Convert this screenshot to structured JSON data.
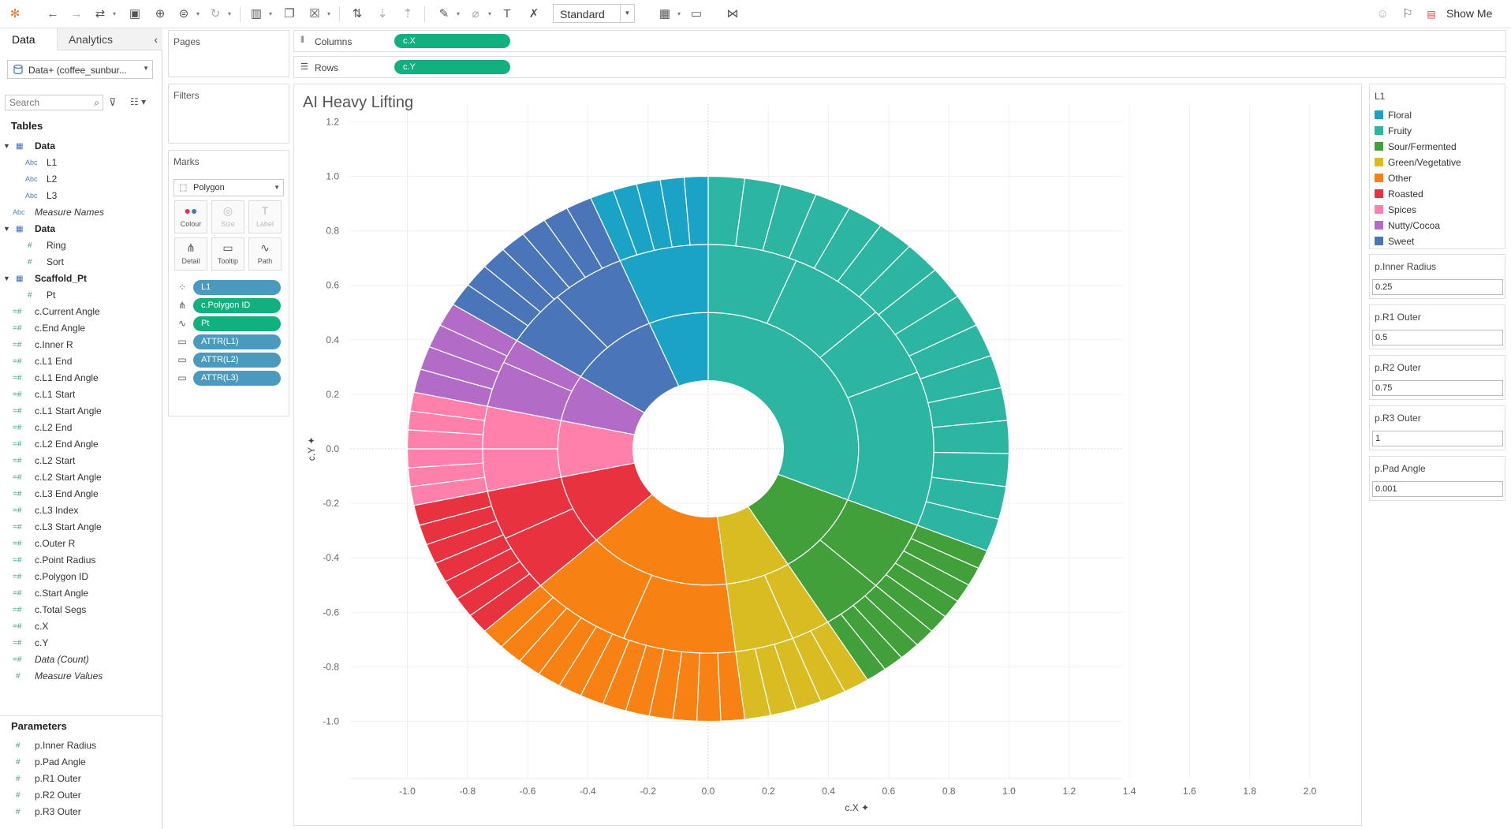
{
  "toolbar": {
    "view_select": "Standard",
    "show_me": "Show Me"
  },
  "left_pane": {
    "tab_data": "Data",
    "tab_analytics": "Analytics",
    "datasource": "Data+ (coffee_sunbur...",
    "search_placeholder": "Search",
    "tables_heading": "Tables",
    "fields": [
      {
        "label": "Data",
        "type": "table",
        "level": 0,
        "expanded": true
      },
      {
        "label": "L1",
        "type": "abc",
        "level": 1
      },
      {
        "label": "L2",
        "type": "abc",
        "level": 1
      },
      {
        "label": "L3",
        "type": "abc",
        "level": 1
      },
      {
        "label": "Measure Names",
        "type": "abc",
        "level": 0,
        "italic": true
      },
      {
        "label": "Data",
        "type": "table",
        "level": 0,
        "expanded": true
      },
      {
        "label": "Ring",
        "type": "num",
        "level": 1
      },
      {
        "label": "Sort",
        "type": "num",
        "level": 1
      },
      {
        "label": "Scaffold_Pt",
        "type": "table",
        "level": 0,
        "expanded": true
      },
      {
        "label": "Pt",
        "type": "num",
        "level": 1
      },
      {
        "label": "c.Current Angle",
        "type": "calc",
        "level": 0
      },
      {
        "label": "c.End Angle",
        "type": "calc",
        "level": 0
      },
      {
        "label": "c.Inner R",
        "type": "calc",
        "level": 0
      },
      {
        "label": "c.L1 End",
        "type": "calc",
        "level": 0
      },
      {
        "label": "c.L1 End Angle",
        "type": "calc",
        "level": 0
      },
      {
        "label": "c.L1 Start",
        "type": "calc",
        "level": 0
      },
      {
        "label": "c.L1 Start Angle",
        "type": "calc",
        "level": 0
      },
      {
        "label": "c.L2 End",
        "type": "calc",
        "level": 0
      },
      {
        "label": "c.L2 End Angle",
        "type": "calc",
        "level": 0
      },
      {
        "label": "c.L2 Start",
        "type": "calc",
        "level": 0
      },
      {
        "label": "c.L2 Start Angle",
        "type": "calc",
        "level": 0
      },
      {
        "label": "c.L3 End Angle",
        "type": "calc",
        "level": 0
      },
      {
        "label": "c.L3 Index",
        "type": "calc",
        "level": 0
      },
      {
        "label": "c.L3 Start Angle",
        "type": "calc",
        "level": 0
      },
      {
        "label": "c.Outer R",
        "type": "calc",
        "level": 0
      },
      {
        "label": "c.Point Radius",
        "type": "calc",
        "level": 0
      },
      {
        "label": "c.Polygon ID",
        "type": "calc",
        "level": 0
      },
      {
        "label": "c.Start Angle",
        "type": "calc",
        "level": 0
      },
      {
        "label": "c.Total Segs",
        "type": "calc",
        "level": 0
      },
      {
        "label": "c.X",
        "type": "calc",
        "level": 0
      },
      {
        "label": "c.Y",
        "type": "calc",
        "level": 0
      },
      {
        "label": "Data (Count)",
        "type": "calc",
        "level": 0,
        "italic": true
      },
      {
        "label": "Measure Values",
        "type": "num",
        "level": 0,
        "italic": true
      }
    ],
    "parameters_heading": "Parameters",
    "parameters": [
      "p.Inner Radius",
      "p.Pad Angle",
      "p.R1 Outer",
      "p.R2 Outer",
      "p.R3 Outer"
    ]
  },
  "pages": {
    "title": "Pages"
  },
  "filters": {
    "title": "Filters"
  },
  "marks": {
    "title": "Marks",
    "type": "Polygon",
    "buttons": [
      "Colour",
      "Size",
      "Label",
      "Detail",
      "Tooltip",
      "Path"
    ],
    "pills": [
      {
        "label": "L1",
        "icon": "colour-icon",
        "color": "blue"
      },
      {
        "label": "c.Polygon ID",
        "icon": "detail-icon",
        "color": "green"
      },
      {
        "label": "Pt",
        "icon": "path-icon",
        "color": "green"
      },
      {
        "label": "ATTR(L1)",
        "icon": "tooltip-icon",
        "color": "blue"
      },
      {
        "label": "ATTR(L2)",
        "icon": "tooltip-icon",
        "color": "blue"
      },
      {
        "label": "ATTR(L3)",
        "icon": "tooltip-icon",
        "color": "blue"
      }
    ]
  },
  "columns": {
    "label": "Columns",
    "pill": "c.X"
  },
  "rows": {
    "label": "Rows",
    "pill": "c.Y"
  },
  "viz": {
    "title": "AI Heavy Lifting"
  },
  "legend": {
    "title": "L1",
    "items": [
      {
        "label": "Floral",
        "color": "#1ba3c6"
      },
      {
        "label": "Fruity",
        "color": "#2cb5a0"
      },
      {
        "label": "Sour/Fermented",
        "color": "#41a03a"
      },
      {
        "label": "Green/Vegetative",
        "color": "#d9bc22"
      },
      {
        "label": "Other",
        "color": "#f78113"
      },
      {
        "label": "Roasted",
        "color": "#e8323f"
      },
      {
        "label": "Spices",
        "color": "#ff80aa"
      },
      {
        "label": "Nutty/Cocoa",
        "color": "#b26cc8"
      },
      {
        "label": "Sweet",
        "color": "#4a76b9"
      }
    ]
  },
  "param_cards": [
    {
      "title": "p.Inner Radius",
      "value": "0.25"
    },
    {
      "title": "p.R1 Outer",
      "value": "0.5"
    },
    {
      "title": "p.R2 Outer",
      "value": "0.75"
    },
    {
      "title": "p.R3 Outer",
      "value": "1"
    },
    {
      "title": "p.Pad Angle",
      "value": "0.001"
    }
  ],
  "chart_data": {
    "type": "sunburst",
    "xlabel": "c.X",
    "ylabel": "c.Y",
    "xlim": [
      -1.1,
      2.1
    ],
    "ylim": [
      -1.15,
      1.22
    ],
    "xticks": [
      -1.0,
      -0.8,
      -0.6,
      -0.4,
      -0.2,
      0.0,
      0.2,
      0.4,
      0.6,
      0.8,
      1.0,
      1.2,
      1.4,
      1.6,
      1.8,
      2.0
    ],
    "yticks": [
      1.2,
      1.0,
      0.8,
      0.6,
      0.4,
      0.2,
      0.0,
      -0.2,
      -0.4,
      -0.6,
      -0.8,
      -1.0
    ],
    "radii": [
      0.25,
      0.5,
      0.75,
      1.0
    ],
    "start_angle_deg_clockwise_from_top": 0,
    "rings": [
      {
        "name": "L1",
        "segments": [
          {
            "cat": "Fruity",
            "start": 0,
            "end": 112
          },
          {
            "cat": "Sour/Fermented",
            "start": 112,
            "end": 148
          },
          {
            "cat": "Green/Vegetative",
            "start": 148,
            "end": 173
          },
          {
            "cat": "Other",
            "start": 173,
            "end": 228
          },
          {
            "cat": "Roasted",
            "start": 228,
            "end": 258
          },
          {
            "cat": "Spices",
            "start": 258,
            "end": 282
          },
          {
            "cat": "Nutty/Cocoa",
            "start": 282,
            "end": 302
          },
          {
            "cat": "Sweet",
            "start": 302,
            "end": 337
          },
          {
            "cat": "Floral",
            "start": 337,
            "end": 360
          }
        ]
      },
      {
        "name": "L2",
        "segments": [
          {
            "cat": "Fruity",
            "start": 0,
            "end": 23
          },
          {
            "cat": "Fruity",
            "start": 23,
            "end": 48
          },
          {
            "cat": "Fruity",
            "start": 48,
            "end": 68
          },
          {
            "cat": "Fruity",
            "start": 68,
            "end": 112
          },
          {
            "cat": "Sour/Fermented",
            "start": 112,
            "end": 132
          },
          {
            "cat": "Sour/Fermented",
            "start": 132,
            "end": 148
          },
          {
            "cat": "Green/Vegetative",
            "start": 148,
            "end": 158
          },
          {
            "cat": "Green/Vegetative",
            "start": 158,
            "end": 173
          },
          {
            "cat": "Other",
            "start": 173,
            "end": 202
          },
          {
            "cat": "Other",
            "start": 202,
            "end": 228
          },
          {
            "cat": "Roasted",
            "start": 228,
            "end": 244
          },
          {
            "cat": "Roasted",
            "start": 244,
            "end": 258
          },
          {
            "cat": "Spices",
            "start": 258,
            "end": 270
          },
          {
            "cat": "Spices",
            "start": 270,
            "end": 282
          },
          {
            "cat": "Nutty/Cocoa",
            "start": 282,
            "end": 295
          },
          {
            "cat": "Nutty/Cocoa",
            "start": 295,
            "end": 302
          },
          {
            "cat": "Sweet",
            "start": 302,
            "end": 318
          },
          {
            "cat": "Sweet",
            "start": 318,
            "end": 337
          },
          {
            "cat": "Floral",
            "start": 337,
            "end": 360
          }
        ]
      },
      {
        "name": "L3",
        "segments": [
          {
            "cat": "Fruity",
            "start": 0,
            "end": 112,
            "count": 16
          },
          {
            "cat": "Sour/Fermented",
            "start": 112,
            "end": 148,
            "count": 9
          },
          {
            "cat": "Green/Vegetative",
            "start": 148,
            "end": 173,
            "count": 5
          },
          {
            "cat": "Other",
            "start": 173,
            "end": 228,
            "count": 12
          },
          {
            "cat": "Roasted",
            "start": 228,
            "end": 258,
            "count": 7
          },
          {
            "cat": "Spices",
            "start": 258,
            "end": 282,
            "count": 6
          },
          {
            "cat": "Nutty/Cocoa",
            "start": 282,
            "end": 302,
            "count": 4
          },
          {
            "cat": "Sweet",
            "start": 302,
            "end": 337,
            "count": 7
          },
          {
            "cat": "Floral",
            "start": 337,
            "end": 360,
            "count": 5
          }
        ]
      }
    ]
  }
}
